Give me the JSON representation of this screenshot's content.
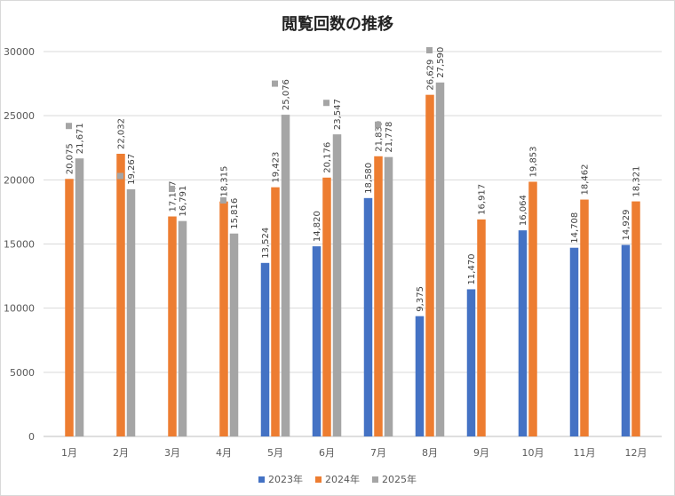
{
  "chart_data": {
    "type": "bar",
    "title": "閲覧回数の推移",
    "categories": [
      "1月",
      "2月",
      "3月",
      "4月",
      "5月",
      "6月",
      "7月",
      "8月",
      "9月",
      "10月",
      "11月",
      "12月"
    ],
    "ylim": [
      0,
      30000
    ],
    "yticks": [
      0,
      5000,
      10000,
      15000,
      20000,
      25000,
      30000
    ],
    "grid": true,
    "legend_position": "bottom",
    "series": [
      {
        "name": "2023年",
        "color": "#4472c4",
        "values": [
          null,
          null,
          null,
          null,
          13524,
          14820,
          18580,
          9375,
          11470,
          16064,
          14708,
          14929
        ],
        "labels": [
          "",
          "",
          "",
          "",
          "13,524",
          "14,820",
          "18,580",
          "9,375",
          "11,470",
          "16,064",
          "14,708",
          "14,929"
        ]
      },
      {
        "name": "2024年",
        "color": "#ed7d31",
        "values": [
          20075,
          22032,
          17147,
          18315,
          19423,
          20176,
          21839,
          26629,
          16917,
          19853,
          18462,
          18321
        ],
        "labels": [
          "20,075",
          "22,032",
          "17,147",
          "18,315",
          "19,423",
          "20,176",
          "21,839",
          "26,629",
          "16,917",
          "19,853",
          "18,462",
          "18,321"
        ]
      },
      {
        "name": "2025年",
        "color": "#a5a5a5",
        "values": [
          21671,
          19267,
          16791,
          15816,
          25076,
          23547,
          21778,
          27590,
          null,
          null,
          null,
          null
        ],
        "labels": [
          "21,671",
          "19,267",
          "16,791",
          "15,816",
          "25,076",
          "23,547",
          "21,778",
          "27,590",
          "",
          "",
          "",
          ""
        ]
      }
    ],
    "markers": {
      "color": "#a5a5a5",
      "values": [
        24200,
        20300,
        19300,
        18400,
        27500,
        26000,
        24300,
        30100,
        null,
        null,
        null,
        null
      ]
    }
  }
}
